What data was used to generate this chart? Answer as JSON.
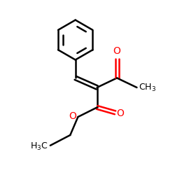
{
  "bg_color": "#ffffff",
  "bond_color": "#000000",
  "oxygen_color": "#ff0000",
  "line_width": 1.8,
  "figure_size": [
    2.5,
    2.5
  ],
  "dpi": 100,
  "xlim": [
    0,
    10
  ],
  "ylim": [
    0,
    10
  ]
}
